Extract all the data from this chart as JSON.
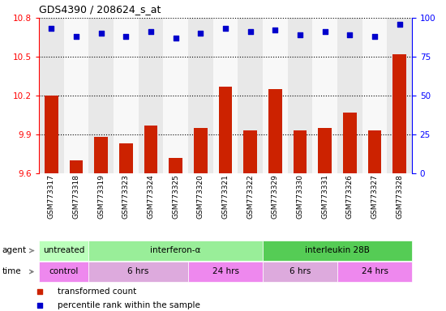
{
  "title": "GDS4390 / 208624_s_at",
  "samples": [
    "GSM773317",
    "GSM773318",
    "GSM773319",
    "GSM773323",
    "GSM773324",
    "GSM773325",
    "GSM773320",
    "GSM773321",
    "GSM773322",
    "GSM773329",
    "GSM773330",
    "GSM773331",
    "GSM773326",
    "GSM773327",
    "GSM773328"
  ],
  "bar_values": [
    10.2,
    9.7,
    9.88,
    9.83,
    9.97,
    9.72,
    9.95,
    10.27,
    9.93,
    10.25,
    9.93,
    9.95,
    10.07,
    9.93,
    10.52
  ],
  "dot_values": [
    93,
    88,
    90,
    88,
    91,
    87,
    90,
    93,
    91,
    92,
    89,
    91,
    89,
    88,
    96
  ],
  "ylim_left": [
    9.6,
    10.8
  ],
  "ylim_right": [
    0,
    100
  ],
  "yticks_left": [
    9.6,
    9.9,
    10.2,
    10.5,
    10.8
  ],
  "yticks_right": [
    0,
    25,
    50,
    75,
    100
  ],
  "bar_color": "#cc2200",
  "dot_color": "#0000cc",
  "grid_values": [
    9.9,
    10.2,
    10.5,
    10.8
  ],
  "agent_groups": [
    {
      "label": "untreated",
      "start": 0,
      "end": 2,
      "color": "#bbffbb"
    },
    {
      "label": "interferon-α",
      "start": 2,
      "end": 9,
      "color": "#99ee99"
    },
    {
      "label": "interleukin 28B",
      "start": 9,
      "end": 15,
      "color": "#55cc55"
    }
  ],
  "time_groups": [
    {
      "label": "control",
      "start": 0,
      "end": 2,
      "color": "#ee88ee"
    },
    {
      "label": "6 hrs",
      "start": 2,
      "end": 6,
      "color": "#ddaadd"
    },
    {
      "label": "24 hrs",
      "start": 6,
      "end": 9,
      "color": "#ee88ee"
    },
    {
      "label": "6 hrs",
      "start": 9,
      "end": 12,
      "color": "#ddaadd"
    },
    {
      "label": "24 hrs",
      "start": 12,
      "end": 15,
      "color": "#ee88ee"
    }
  ],
  "legend_items": [
    {
      "label": "transformed count",
      "color": "#cc2200"
    },
    {
      "label": "percentile rank within the sample",
      "color": "#0000cc"
    }
  ],
  "col_bg_colors": [
    "#e8e8e8",
    "#f8f8f8"
  ]
}
